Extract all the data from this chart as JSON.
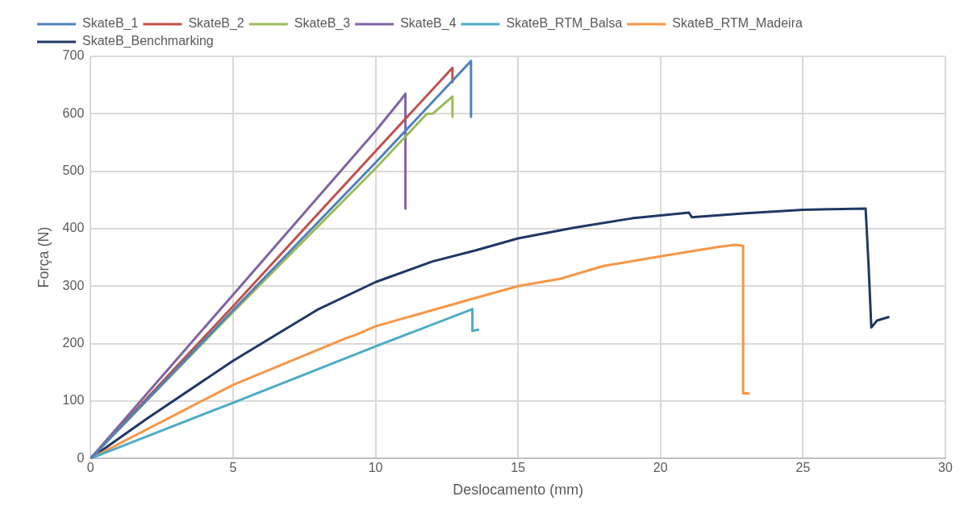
{
  "chart_data": {
    "type": "line",
    "xlabel": "Deslocamento (mm)",
    "ylabel": "Força (N)",
    "xlim": [
      0,
      30
    ],
    "xticks": [
      0,
      5,
      10,
      15,
      20,
      25,
      30
    ],
    "ylim": [
      0,
      700
    ],
    "yticks": [
      0,
      100,
      200,
      300,
      400,
      500,
      600,
      700
    ],
    "grid": true,
    "legend": "top",
    "marker": "none",
    "line_style": "solid",
    "series": [
      {
        "name": "SkateB_1",
        "color": "#4f81bd",
        "x": [
          0,
          5,
          10,
          13.35,
          13.35
        ],
        "values": [
          0,
          258,
          515,
          692,
          595
        ]
      },
      {
        "name": "SkateB_2",
        "color": "#c0504d",
        "x": [
          0,
          5,
          10,
          12.7,
          12.7
        ],
        "values": [
          0,
          265,
          535,
          680,
          655
        ]
      },
      {
        "name": "SkateB_3",
        "color": "#9bbb59",
        "x": [
          0,
          5,
          10,
          11.8,
          12.0,
          12.7,
          12.7
        ],
        "values": [
          0,
          255,
          505,
          600,
          600,
          630,
          595
        ]
      },
      {
        "name": "SkateB_4",
        "color": "#8064a2",
        "x": [
          0,
          5,
          10,
          10.9,
          11.05,
          11.05
        ],
        "values": [
          0,
          285,
          570,
          625,
          635,
          435
        ]
      },
      {
        "name": "SkateB_RTM_Balsa",
        "color": "#4bacc6",
        "x": [
          0,
          5,
          10,
          13.4,
          13.4,
          13.6
        ],
        "values": [
          0,
          97,
          195,
          260,
          222,
          224
        ]
      },
      {
        "name": "SkateB_RTM_Madeira",
        "color": "#f79646",
        "x": [
          0,
          5,
          9,
          9.3,
          10,
          13.4,
          15,
          16.5,
          18,
          20,
          22,
          22.6,
          22.9,
          22.9,
          23.1
        ],
        "values": [
          0,
          128,
          210,
          215,
          230,
          278,
          300,
          313,
          335,
          352,
          368,
          372,
          370,
          113,
          113
        ]
      },
      {
        "name": "SkateB_Benchmarking",
        "color": "#1f3864",
        "x": [
          0,
          2,
          5,
          8,
          10,
          12,
          13.5,
          15,
          17,
          19,
          21,
          21.1,
          23,
          25,
          27.2,
          27.3,
          27.4,
          27.6,
          28
        ],
        "values": [
          0,
          70,
          170,
          260,
          307,
          343,
          362,
          383,
          402,
          418,
          428,
          420,
          427,
          433,
          435,
          340,
          228,
          240,
          246
        ]
      }
    ]
  }
}
